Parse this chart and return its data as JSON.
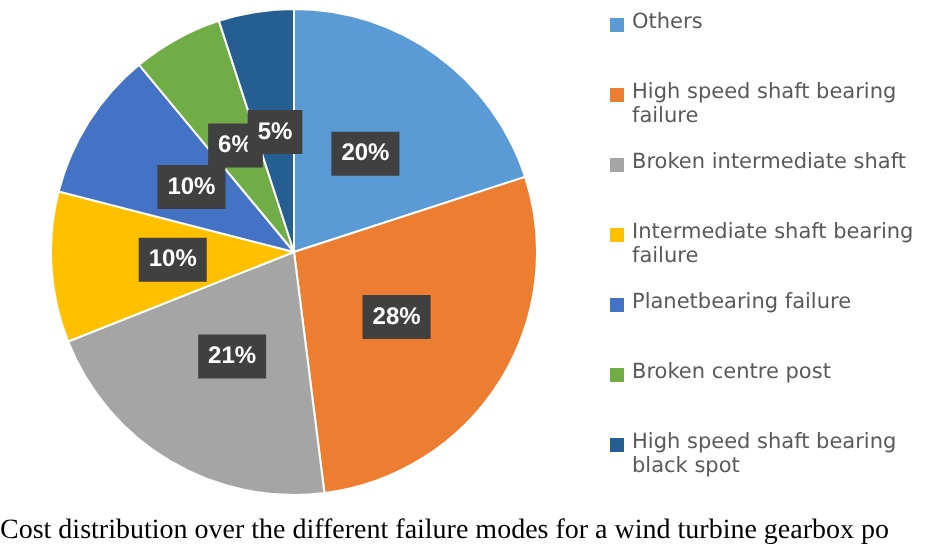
{
  "chart_data": {
    "type": "pie",
    "categories": [
      "Others",
      "High speed shaft bearing failure",
      "Broken intermediate shaft",
      "Intermediate shaft bearing failure",
      "Planetbearing failure",
      "Broken centre post",
      "High speed shaft bearing black spot"
    ],
    "values": [
      20,
      28,
      21,
      10,
      10,
      6,
      5
    ],
    "colors": [
      "#5b9bd5",
      "#ed7d31",
      "#a5a5a5",
      "#ffc000",
      "#4472c4",
      "#70ad47",
      "#255e91"
    ],
    "value_labels": [
      "20%",
      "28%",
      "21%",
      "10%",
      "10%",
      "6%",
      "5%"
    ],
    "legend": "right",
    "annotations": [
      "Cost distribution over the different failure modes for a wind turbine gearbox po"
    ]
  }
}
